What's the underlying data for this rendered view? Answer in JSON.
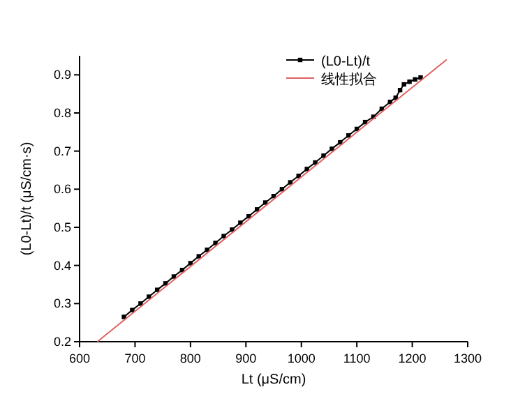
{
  "chart_data": {
    "type": "line",
    "xlabel": "Lt (μS/cm)",
    "ylabel": "(L0-Lt)/t (μS/cm·s)",
    "xlim": [
      600,
      1300
    ],
    "xticks": [
      600,
      700,
      800,
      900,
      1000,
      1100,
      1200,
      1300
    ],
    "ylim": [
      0.2,
      0.95
    ],
    "yticks": [
      0.2,
      0.3,
      0.4,
      0.5,
      0.6,
      0.7,
      0.8,
      0.9
    ],
    "legend": "top right",
    "series": [
      {
        "name": "(L0-Lt)/t",
        "marker": "square",
        "color": "#000000",
        "x": [
          680,
          695,
          710,
          725,
          740,
          755,
          770,
          785,
          800,
          815,
          830,
          845,
          860,
          875,
          890,
          905,
          920,
          935,
          950,
          965,
          980,
          995,
          1010,
          1025,
          1040,
          1055,
          1070,
          1085,
          1100,
          1115,
          1130,
          1145,
          1160,
          1170,
          1178,
          1185,
          1195,
          1205,
          1215
        ],
        "values": [
          0.265,
          0.283,
          0.3,
          0.318,
          0.336,
          0.353,
          0.371,
          0.388,
          0.406,
          0.424,
          0.441,
          0.459,
          0.477,
          0.494,
          0.512,
          0.529,
          0.547,
          0.565,
          0.582,
          0.6,
          0.618,
          0.635,
          0.653,
          0.67,
          0.688,
          0.706,
          0.723,
          0.741,
          0.758,
          0.776,
          0.79,
          0.811,
          0.829,
          0.84,
          0.86,
          0.875,
          0.882,
          0.888,
          0.893
        ]
      },
      {
        "name": "线性拟合",
        "marker": "none",
        "color": "#e06060",
        "x": [
          632,
          1262
        ],
        "values": [
          0.2,
          0.94
        ]
      }
    ]
  }
}
